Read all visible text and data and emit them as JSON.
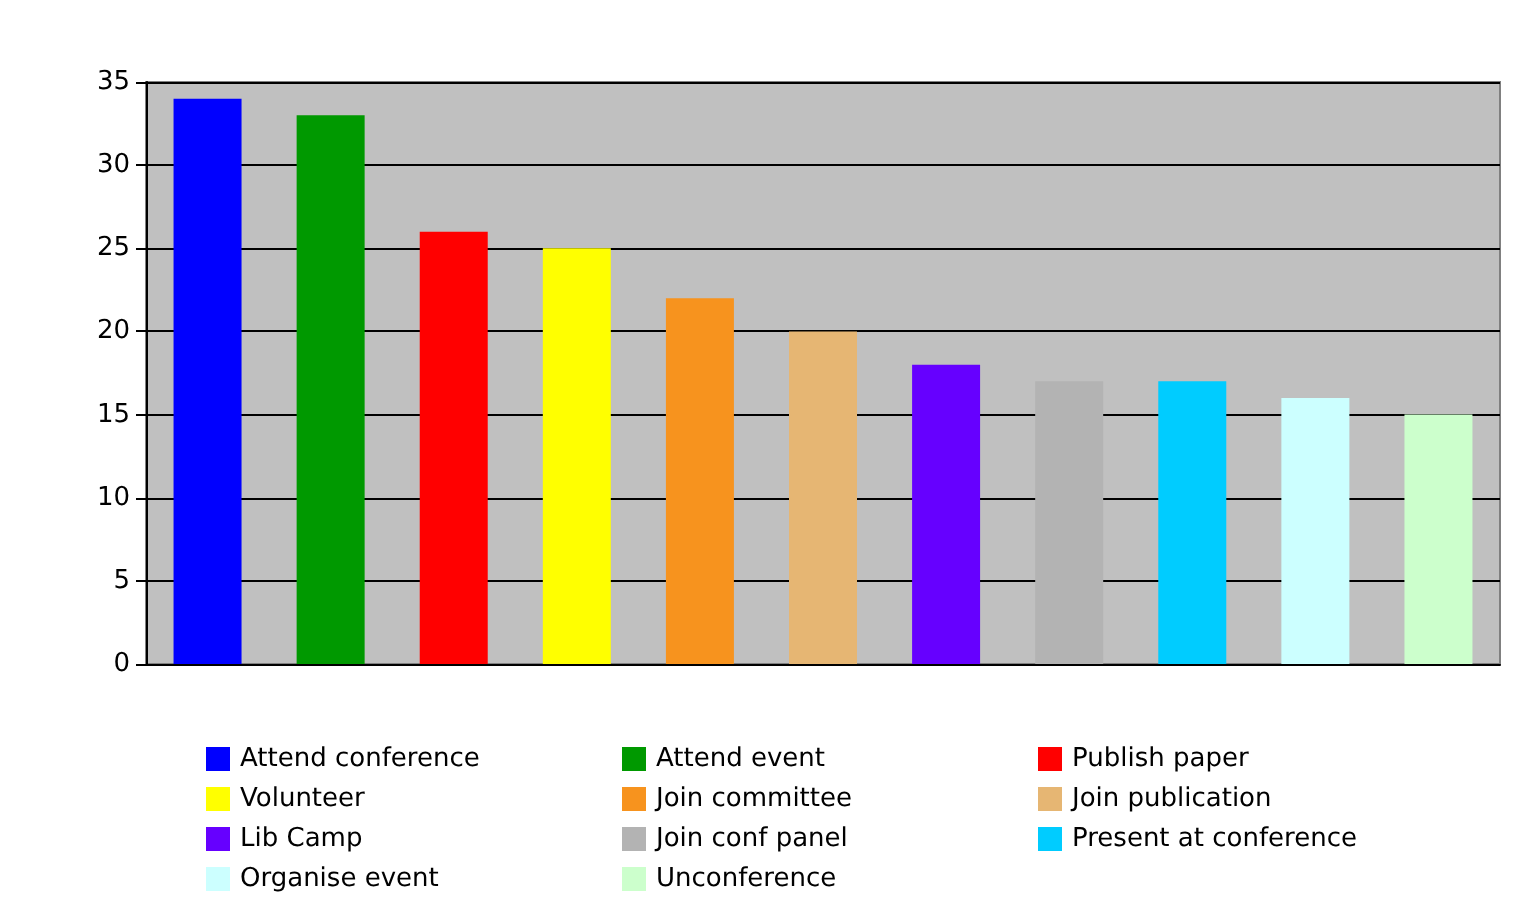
{
  "chart_data": {
    "type": "bar",
    "stacked": true,
    "categories": [
      null,
      null,
      null,
      null,
      null,
      null,
      null,
      null,
      null,
      null,
      null
    ],
    "series": [
      {
        "name": "Attend conference",
        "color": "#0000ff",
        "values": [
          34,
          null,
          null,
          null,
          null,
          null,
          null,
          null,
          null,
          null,
          null
        ]
      },
      {
        "name": "Attend event",
        "color": "#009900",
        "values": [
          null,
          33,
          null,
          null,
          null,
          null,
          null,
          null,
          null,
          null,
          null
        ]
      },
      {
        "name": "Publish paper",
        "color": "#ff0000",
        "values": [
          null,
          null,
          26,
          null,
          null,
          null,
          null,
          null,
          null,
          null,
          null
        ]
      },
      {
        "name": "Volunteer",
        "color": "#ffff00",
        "values": [
          null,
          null,
          null,
          25,
          null,
          null,
          null,
          null,
          null,
          null,
          null
        ]
      },
      {
        "name": "Join committee",
        "color": "#f7931e",
        "values": [
          null,
          null,
          null,
          null,
          22,
          null,
          null,
          null,
          null,
          null,
          null
        ]
      },
      {
        "name": "Join publication",
        "color": "#e6b673",
        "values": [
          null,
          null,
          null,
          null,
          null,
          20,
          null,
          null,
          null,
          null,
          null
        ]
      },
      {
        "name": "Lib Camp",
        "color": "#6600ff",
        "values": [
          null,
          null,
          null,
          null,
          null,
          null,
          18,
          null,
          null,
          null,
          null
        ]
      },
      {
        "name": "Join conf panel",
        "color": "#b3b3b3",
        "values": [
          null,
          null,
          null,
          null,
          null,
          null,
          null,
          17,
          null,
          null,
          null
        ]
      },
      {
        "name": "Present at conference",
        "color": "#00ccff",
        "values": [
          null,
          null,
          null,
          null,
          null,
          null,
          null,
          null,
          17,
          null,
          null
        ]
      },
      {
        "name": "Organise event",
        "color": "#ccffff",
        "values": [
          null,
          null,
          null,
          null,
          null,
          null,
          null,
          null,
          null,
          16,
          null
        ]
      },
      {
        "name": "Unconference",
        "color": "#ccffcc",
        "values": [
          null,
          null,
          null,
          null,
          null,
          null,
          null,
          null,
          null,
          null,
          15
        ]
      }
    ],
    "ylim": [
      0,
      35
    ],
    "yticks": [
      0,
      5,
      10,
      15,
      20,
      25,
      30,
      35
    ],
    "grid": "y",
    "legend": "bottom"
  }
}
